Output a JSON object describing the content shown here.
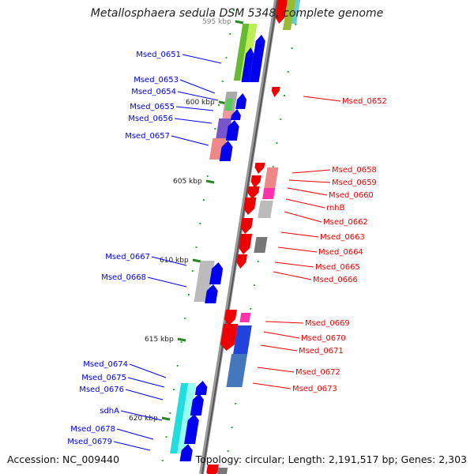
{
  "title": "Metallosphaera sedula DSM 5348, complete genome",
  "footer": {
    "accession": "Accession: NC_009440",
    "summary": "Topology: circular; Length: 2,191,517 bp; Genes: 2,303"
  },
  "colors": {
    "forward_strand": "#0000ee",
    "reverse_strand": "#ee0000",
    "backbone": "#777777",
    "tick": "#228822"
  },
  "ruler": [
    {
      "label": "595 kbp"
    },
    {
      "label": "600 kbp"
    },
    {
      "label": "605 kbp"
    },
    {
      "label": "610 kbp"
    },
    {
      "label": "615 kbp"
    },
    {
      "label": "620 kbp"
    }
  ],
  "forward_labels": [
    "Msed_0651",
    "Msed_0653",
    "Msed_0654",
    "Msed_0655",
    "Msed_0656",
    "Msed_0657",
    "Msed_0667",
    "Msed_0668",
    "Msed_0674",
    "Msed_0675",
    "Msed_0676",
    "sdhA",
    "Msed_0678",
    "Msed_0679"
  ],
  "reverse_labels": [
    "Msed_0652",
    "Msed_0658",
    "Msed_0659",
    "Msed_0660",
    "rnhB",
    "Msed_0662",
    "Msed_0663",
    "Msed_0664",
    "Msed_0665",
    "Msed_0666",
    "Msed_0669",
    "Msed_0670",
    "Msed_0671",
    "Msed_0672",
    "Msed_0673"
  ]
}
